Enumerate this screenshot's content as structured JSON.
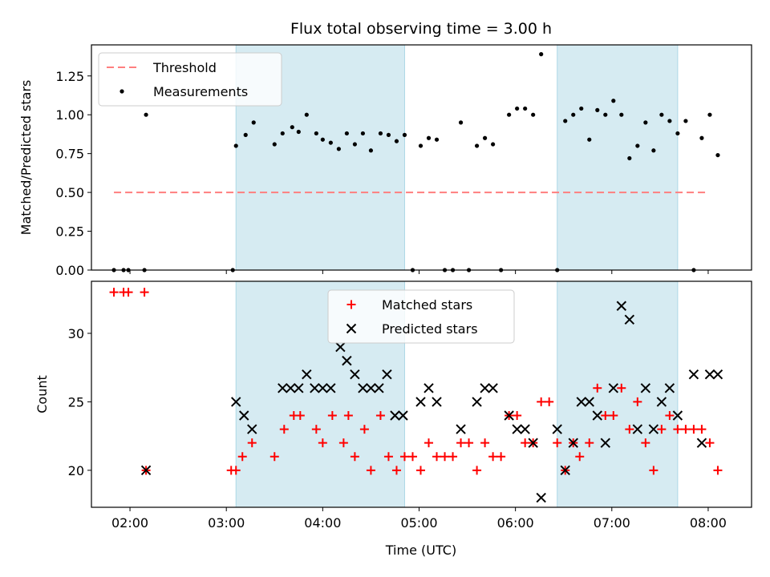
{
  "title": "Flux total observing time = 3.00 h",
  "colors": {
    "threshold": "#ff7f7f",
    "measurements": "#000000",
    "matched": "#ff0000",
    "predicted": "#000000",
    "shade": "#add8e6"
  },
  "x_axis": {
    "label": "Time (UTC)",
    "ticks": [
      {
        "value": 120,
        "label": "02:00"
      },
      {
        "value": 180,
        "label": "03:00"
      },
      {
        "value": 240,
        "label": "04:00"
      },
      {
        "value": 300,
        "label": "05:00"
      },
      {
        "value": 360,
        "label": "06:00"
      },
      {
        "value": 420,
        "label": "07:00"
      },
      {
        "value": 480,
        "label": "08:00"
      }
    ],
    "range": [
      96,
      507
    ]
  },
  "shaded_intervals_minutes": [
    [
      186,
      291
    ],
    [
      386,
      461
    ]
  ],
  "chart_data": [
    {
      "type": "scatter",
      "ylabel": "Matched/Predicted stars",
      "ylim": [
        0,
        1.45
      ],
      "yticks": [
        "0.00",
        "0.25",
        "0.50",
        "0.75",
        "1.00",
        "1.25"
      ],
      "ytick_values": [
        0,
        0.25,
        0.5,
        0.75,
        1.0,
        1.25
      ],
      "legend": [
        "Threshold",
        "Measurements"
      ],
      "threshold": {
        "value": 0.5,
        "x_range": [
          110,
          480
        ]
      },
      "measurements": {
        "x": [
          110,
          116,
          119,
          129,
          130,
          184,
          186,
          192,
          197,
          210,
          215,
          221,
          225,
          230,
          236,
          240,
          245,
          250,
          255,
          260,
          265,
          270,
          276,
          281,
          286,
          291,
          296,
          301,
          306,
          311,
          316,
          321,
          326,
          331,
          336,
          341,
          346,
          351,
          356,
          361,
          366,
          371,
          376,
          386,
          391,
          396,
          401,
          406,
          411,
          416,
          421,
          426,
          431,
          436,
          441,
          446,
          451,
          456,
          461,
          466,
          471,
          476,
          481,
          486
        ],
        "y": [
          0,
          0,
          0,
          0,
          1.0,
          0,
          0.8,
          0.87,
          0.95,
          0.81,
          0.88,
          0.92,
          0.89,
          1.0,
          0.88,
          0.84,
          0.82,
          0.78,
          0.88,
          0.81,
          0.88,
          0.77,
          0.88,
          0.87,
          0.83,
          0.87,
          0,
          0.8,
          0.85,
          0.84,
          0,
          0,
          0.95,
          0,
          0.8,
          0.85,
          0.81,
          0,
          1.0,
          1.04,
          1.04,
          1.0,
          1.39,
          0,
          0.96,
          1.0,
          1.04,
          0.84,
          1.03,
          1.0,
          1.09,
          1.0,
          0.72,
          0.8,
          0.95,
          0.77,
          1.0,
          0.96,
          0.88,
          0.96,
          0,
          0.85,
          1.0,
          0.74
        ]
      }
    },
    {
      "type": "scatter",
      "ylabel": "Count",
      "ylim": [
        17.3,
        33.8
      ],
      "yticks": [
        "20",
        "25",
        "30"
      ],
      "ytick_values": [
        20,
        25,
        30
      ],
      "legend": [
        "Matched stars",
        "Predicted stars"
      ],
      "series": [
        {
          "name": "Matched stars",
          "marker": "plus",
          "x": [
            110,
            116,
            119,
            129,
            130,
            183,
            186,
            190,
            196,
            210,
            216,
            222,
            226,
            236,
            240,
            246,
            253,
            256,
            260,
            266,
            270,
            276,
            281,
            286,
            291,
            296,
            301,
            306,
            311,
            316,
            321,
            326,
            331,
            336,
            341,
            346,
            351,
            356,
            361,
            366,
            371,
            376,
            381,
            386,
            391,
            396,
            400,
            406,
            411,
            416,
            421,
            426,
            431,
            436,
            441,
            446,
            451,
            456,
            461,
            466,
            471,
            476,
            481,
            486
          ],
          "y": [
            33,
            33,
            33,
            33,
            20,
            20,
            20,
            21,
            22,
            21,
            23,
            24,
            24,
            23,
            22,
            24,
            22,
            24,
            21,
            23,
            20,
            24,
            21,
            20,
            21,
            21,
            20,
            22,
            21,
            21,
            21,
            22,
            22,
            20,
            22,
            21,
            21,
            24,
            24,
            22,
            22,
            25,
            25,
            22,
            20,
            22,
            21,
            22,
            26,
            24,
            24,
            26,
            23,
            25,
            22,
            20,
            23,
            24,
            23,
            23,
            23,
            23,
            22,
            20
          ]
        },
        {
          "name": "Predicted stars",
          "marker": "x",
          "x": [
            130,
            186,
            191,
            196,
            215,
            220,
            225,
            230,
            235,
            240,
            245,
            251,
            255,
            260,
            265,
            270,
            275,
            280,
            285,
            290,
            301,
            306,
            311,
            326,
            336,
            341,
            346,
            356,
            361,
            366,
            371,
            376,
            386,
            391,
            396,
            401,
            406,
            411,
            416,
            421,
            426,
            431,
            436,
            441,
            446,
            451,
            456,
            461,
            471,
            476,
            481,
            486
          ],
          "y": [
            20,
            25,
            24,
            23,
            26,
            26,
            26,
            27,
            26,
            26,
            26,
            29,
            28,
            27,
            26,
            26,
            26,
            27,
            24,
            24,
            25,
            26,
            25,
            23,
            25,
            26,
            26,
            24,
            23,
            23,
            22,
            18,
            23,
            20,
            22,
            25,
            25,
            24,
            22,
            26,
            32,
            31,
            23,
            26,
            23,
            25,
            26,
            24,
            27,
            22,
            27,
            27
          ]
        }
      ]
    }
  ]
}
